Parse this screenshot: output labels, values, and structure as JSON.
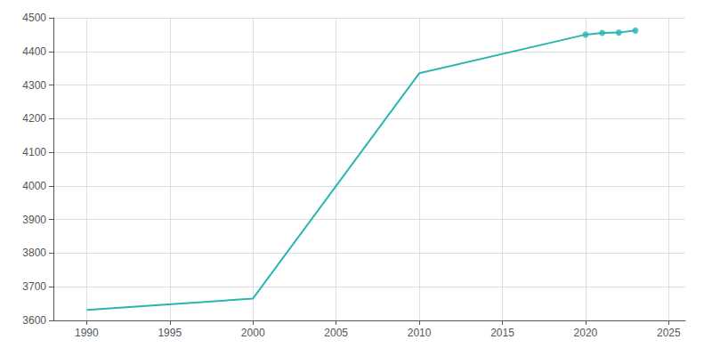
{
  "chart_data": {
    "type": "line",
    "x": [
      1990,
      2000,
      2010,
      2020,
      2021,
      2022,
      2023
    ],
    "series": [
      {
        "type": "line",
        "color": "#2ab5b0",
        "marker": "none",
        "values": [
          3631,
          3665,
          4335,
          4450,
          4455,
          4456,
          4462
        ]
      },
      {
        "type": "scatter",
        "color": "#2ab5b0",
        "marker": "circle",
        "values": [
          null,
          null,
          null,
          4450,
          4455,
          4456,
          4462
        ]
      }
    ],
    "xlim": [
      1988,
      2026
    ],
    "ylim": [
      3600,
      4500
    ],
    "xticks": [
      1990,
      1995,
      2000,
      2005,
      2010,
      2015,
      2020,
      2025
    ],
    "yticks": [
      3600,
      3700,
      3800,
      3900,
      4000,
      4100,
      4200,
      4300,
      4400,
      4500
    ],
    "grid": true
  }
}
